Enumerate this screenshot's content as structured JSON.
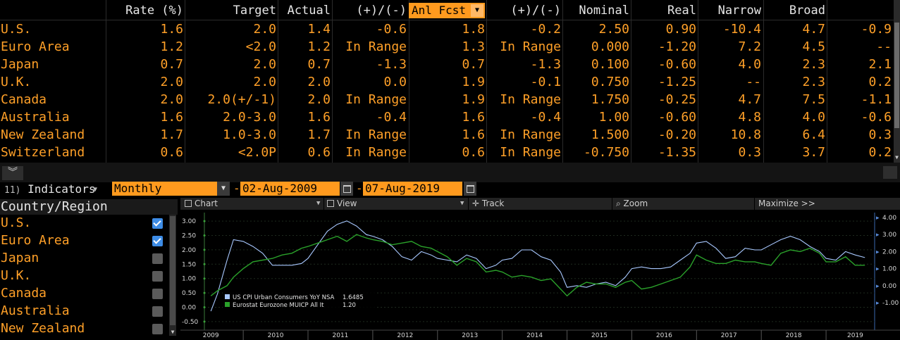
{
  "table": {
    "headers": {
      "rate": "Rate (%)",
      "target": "Target",
      "actual": "Actual",
      "diff1": "(+)/(-)",
      "anl_fcst": "Anl Fcst",
      "diff2": "(+)/(-)",
      "nominal": "Nominal",
      "real": "Real",
      "narrow": "Narrow",
      "broad": "Broad"
    },
    "rows": [
      {
        "name": "U.S.",
        "rate": "1.6",
        "target": "2.0",
        "actual": "1.4",
        "diff1": "-0.6",
        "fcst": "1.8",
        "diff2": "-0.2",
        "nominal": "2.50",
        "real": "0.90",
        "narrow": "-10.4",
        "broad": "4.7",
        "extra": "-0.9"
      },
      {
        "name": "Euro Area",
        "rate": "1.2",
        "target": "<2.0",
        "actual": "1.2",
        "diff1": "In Range",
        "fcst": "1.3",
        "diff2": "In Range",
        "nominal": "0.000",
        "real": "-1.20",
        "narrow": "7.2",
        "broad": "4.5",
        "extra": "--"
      },
      {
        "name": "Japan",
        "rate": "0.7",
        "target": "2.0",
        "actual": "0.7",
        "diff1": "-1.3",
        "fcst": "0.7",
        "diff2": "-1.3",
        "nominal": "0.100",
        "real": "-0.60",
        "narrow": "4.0",
        "broad": "2.3",
        "extra": "2.1"
      },
      {
        "name": "U.K.",
        "rate": "2.0",
        "target": "2.0",
        "actual": "2.0",
        "diff1": "0.0",
        "fcst": "1.9",
        "diff2": "-0.1",
        "nominal": "0.750",
        "real": "-1.25",
        "narrow": "--",
        "broad": "2.3",
        "extra": "0.2"
      },
      {
        "name": "Canada",
        "rate": "2.0",
        "target": "2.0(+/-1)",
        "actual": "2.0",
        "diff1": "In Range",
        "fcst": "1.9",
        "diff2": "In Range",
        "nominal": "1.750",
        "real": "-0.25",
        "narrow": "4.7",
        "broad": "7.5",
        "extra": "-1.1"
      },
      {
        "name": "Australia",
        "rate": "1.6",
        "target": "2.0-3.0",
        "actual": "1.6",
        "diff1": "-0.4",
        "fcst": "1.6",
        "diff2": "-0.4",
        "nominal": "1.00",
        "real": "-0.60",
        "narrow": "4.8",
        "broad": "4.0",
        "extra": "-0.6"
      },
      {
        "name": "New Zealand",
        "rate": "1.7",
        "target": "1.0-3.0",
        "actual": "1.7",
        "diff1": "In Range",
        "fcst": "1.6",
        "diff2": "In Range",
        "nominal": "1.500",
        "real": "-0.20",
        "narrow": "10.8",
        "broad": "6.4",
        "extra": "0.3"
      },
      {
        "name": "Switzerland",
        "rate": "0.6",
        "target": "<2.0P",
        "actual": "0.6",
        "diff1": "In Range",
        "fcst": "0.6",
        "diff2": "In Range",
        "nominal": "-0.750",
        "real": "-1.35",
        "narrow": "0.3",
        "broad": "3.7",
        "extra": "0.2"
      }
    ]
  },
  "toolbar": {
    "indicators_num": "11)",
    "indicators_label": "Indicators",
    "frequency": "Monthly",
    "start_date": "02-Aug-2009",
    "end_date": "07-Aug-2019",
    "dash": "-"
  },
  "list": {
    "title": "Country/Region",
    "items": [
      {
        "name": "U.S.",
        "checked": true
      },
      {
        "name": "Euro Area",
        "checked": true
      },
      {
        "name": "Japan",
        "checked": false
      },
      {
        "name": "U.K.",
        "checked": false
      },
      {
        "name": "Canada",
        "checked": false
      },
      {
        "name": "Australia",
        "checked": false
      },
      {
        "name": "New Zealand",
        "checked": false
      }
    ]
  },
  "chart_toolbar": {
    "chart": "Chart",
    "view": "View",
    "track": "Track",
    "zoom": "Zoom",
    "maximize": "Maximize >>"
  },
  "colors": {
    "us": "#a8c8ff",
    "euro": "#2aa12a",
    "accent": "#ff9a1e",
    "text": "#ffa028"
  },
  "chart_data": {
    "type": "line",
    "x_ticks": [
      "2009",
      "2010",
      "2011",
      "2012",
      "2013",
      "2014",
      "2015",
      "2016",
      "2017",
      "2018",
      "2019"
    ],
    "y_left_ticks": [
      "3.00",
      "2.50",
      "2.00",
      "1.50",
      "1.00",
      "0.50",
      "0.00",
      "-0.50"
    ],
    "y_right_ticks": [
      "4.00",
      "3.00",
      "2.00",
      "1.00",
      "0.00",
      "-1.00"
    ],
    "ylim": [
      -0.7,
      3.2
    ],
    "xlim": [
      2009.4,
      2019.75
    ],
    "legend": [
      {
        "label": "US CPI Urban Consumers YoY NSA",
        "value": "1.6485"
      },
      {
        "label": "Eurostat Eurozone MUICP All It",
        "value": "1.20"
      }
    ],
    "series": [
      {
        "name": "US CPI Urban Consumers YoY NSA",
        "x": [
          2009.5,
          2009.6,
          2009.75,
          2009.85,
          2010.0,
          2010.15,
          2010.3,
          2010.45,
          2010.6,
          2010.75,
          2010.9,
          2011.0,
          2011.15,
          2011.3,
          2011.45,
          2011.6,
          2011.75,
          2011.9,
          2012.0,
          2012.15,
          2012.3,
          2012.45,
          2012.6,
          2012.75,
          2012.9,
          2013.0,
          2013.15,
          2013.3,
          2013.45,
          2013.6,
          2013.75,
          2013.9,
          2014.0,
          2014.15,
          2014.3,
          2014.45,
          2014.6,
          2014.75,
          2014.9,
          2015.0,
          2015.15,
          2015.3,
          2015.45,
          2015.6,
          2015.75,
          2015.9,
          2016.0,
          2016.15,
          2016.3,
          2016.45,
          2016.6,
          2016.75,
          2016.9,
          2017.0,
          2017.15,
          2017.3,
          2017.45,
          2017.6,
          2017.75,
          2017.9,
          2018.0,
          2018.15,
          2018.3,
          2018.45,
          2018.6,
          2018.75,
          2018.9,
          2019.0,
          2019.15,
          2019.3,
          2019.45,
          2019.6
        ],
        "values": [
          -1.5,
          -0.5,
          1.5,
          2.7,
          2.6,
          2.3,
          1.9,
          1.2,
          1.2,
          1.2,
          1.3,
          1.6,
          2.4,
          3.2,
          3.6,
          3.8,
          3.5,
          3.0,
          2.9,
          2.7,
          2.3,
          1.7,
          1.5,
          2.0,
          1.8,
          1.6,
          1.5,
          1.4,
          1.8,
          1.6,
          1.0,
          1.2,
          1.5,
          1.6,
          2.1,
          2.1,
          1.7,
          1.5,
          0.8,
          -0.1,
          0.0,
          -0.1,
          0.1,
          0.2,
          0.0,
          0.5,
          1.0,
          1.1,
          1.0,
          1.0,
          1.1,
          1.5,
          1.9,
          2.5,
          2.6,
          2.2,
          1.6,
          1.7,
          2.2,
          2.1,
          2.1,
          2.4,
          2.7,
          2.9,
          2.7,
          2.3,
          2.0,
          1.6,
          1.5,
          2.0,
          1.8,
          1.65
        ]
      },
      {
        "name": "Eurostat Eurozone MUICP All It",
        "x": [
          2009.5,
          2009.6,
          2009.75,
          2009.85,
          2010.0,
          2010.15,
          2010.3,
          2010.45,
          2010.6,
          2010.75,
          2010.9,
          2011.0,
          2011.15,
          2011.3,
          2011.45,
          2011.6,
          2011.75,
          2011.9,
          2012.0,
          2012.15,
          2012.3,
          2012.45,
          2012.6,
          2012.75,
          2012.9,
          2013.0,
          2013.15,
          2013.3,
          2013.45,
          2013.6,
          2013.75,
          2013.9,
          2014.0,
          2014.15,
          2014.3,
          2014.45,
          2014.6,
          2014.75,
          2014.9,
          2015.0,
          2015.15,
          2015.3,
          2015.45,
          2015.6,
          2015.75,
          2015.9,
          2016.0,
          2016.15,
          2016.3,
          2016.45,
          2016.6,
          2016.75,
          2016.9,
          2017.0,
          2017.15,
          2017.3,
          2017.45,
          2017.6,
          2017.75,
          2017.9,
          2018.0,
          2018.15,
          2018.3,
          2018.45,
          2018.6,
          2018.75,
          2018.9,
          2019.0,
          2019.15,
          2019.3,
          2019.45,
          2019.6
        ],
        "values": [
          -0.6,
          -0.3,
          0.0,
          0.5,
          1.0,
          1.4,
          1.5,
          1.6,
          1.8,
          1.9,
          2.2,
          2.3,
          2.5,
          2.7,
          2.9,
          2.6,
          3.0,
          2.8,
          2.7,
          2.6,
          2.4,
          2.5,
          2.6,
          2.3,
          2.2,
          2.0,
          1.7,
          1.2,
          1.6,
          1.4,
          0.8,
          0.9,
          0.8,
          0.5,
          0.6,
          0.5,
          0.3,
          0.4,
          -0.2,
          -0.6,
          -0.1,
          0.2,
          0.1,
          0.1,
          -0.1,
          0.2,
          0.3,
          -0.2,
          -0.1,
          0.1,
          0.3,
          0.5,
          1.1,
          1.8,
          1.5,
          1.3,
          1.3,
          1.5,
          1.4,
          1.4,
          1.3,
          1.2,
          1.9,
          2.1,
          2.0,
          2.2,
          1.9,
          1.4,
          1.4,
          1.7,
          1.2,
          1.2
        ]
      }
    ]
  }
}
